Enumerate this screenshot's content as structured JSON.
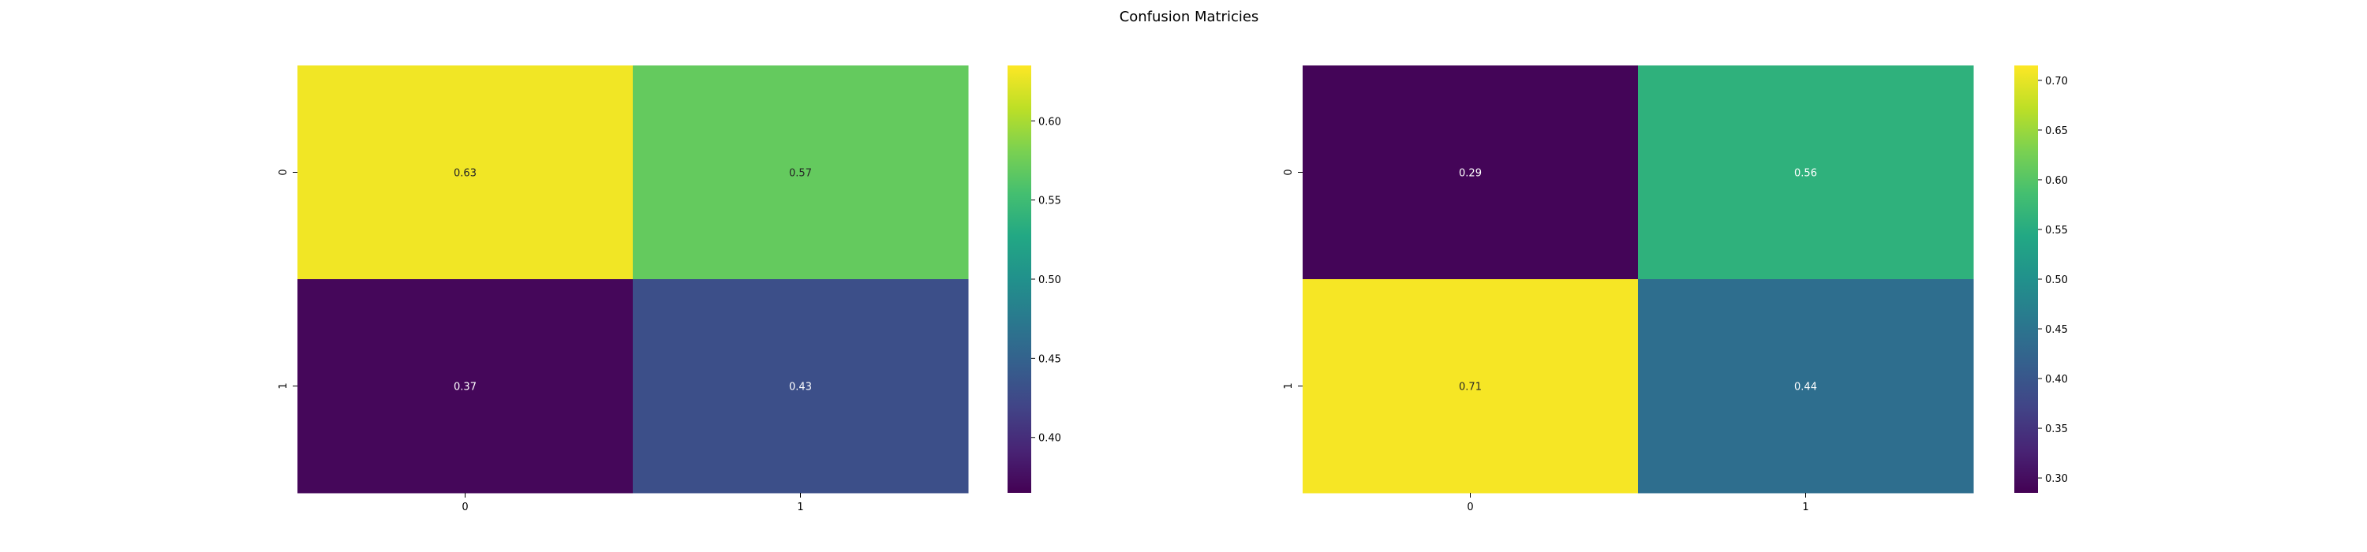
{
  "figure": {
    "title": "Confusion Matricies"
  },
  "chart_data": [
    {
      "type": "heatmap",
      "colormap": "viridis",
      "row_labels": [
        "0",
        "1"
      ],
      "col_labels": [
        "0",
        "1"
      ],
      "values": [
        [
          0.63,
          0.57
        ],
        [
          0.37,
          0.43
        ]
      ],
      "colorbar": {
        "range": [
          0.365,
          0.635
        ],
        "ticks": [
          "0.40",
          "0.45",
          "0.50",
          "0.55",
          "0.60"
        ]
      }
    },
    {
      "type": "heatmap",
      "colormap": "viridis",
      "row_labels": [
        "0",
        "1"
      ],
      "col_labels": [
        "0",
        "1"
      ],
      "values": [
        [
          0.29,
          0.56
        ],
        [
          0.71,
          0.44
        ]
      ],
      "colorbar": {
        "range": [
          0.285,
          0.715
        ],
        "ticks": [
          "0.30",
          "0.35",
          "0.40",
          "0.45",
          "0.50",
          "0.55",
          "0.60",
          "0.65",
          "0.70"
        ]
      }
    }
  ]
}
